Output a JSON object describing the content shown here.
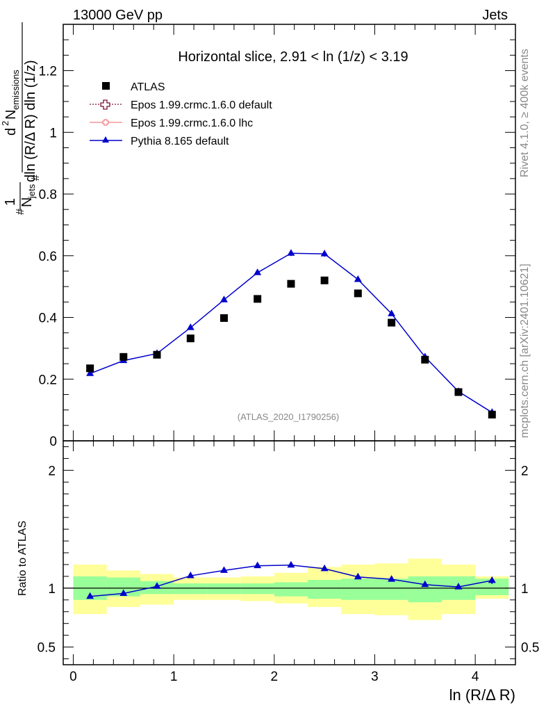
{
  "header": {
    "energy_label": "13000 GeV pp",
    "process_label": "Jets"
  },
  "side_labels": {
    "rivet": "Rivet 4.1.0, ≥ 400k events",
    "source": "mcplots.cern.ch [arXiv:2401.10621]"
  },
  "chart_data": [
    {
      "type": "scatter",
      "title": "Horizontal slice, 2.91 < ln (1/z) < 3.19",
      "watermark": "(ATLAS_2020_I1790256)",
      "ylabel_parts": {
        "one": "1",
        "njets": "N",
        "njets_sub": "jets",
        "hash_num": "#",
        "hash_den": "#",
        "d2": "d",
        "d2_sup": "2",
        "n_em": "N",
        "n_em_sub": "emissions",
        "denom": "dln (R/Δ R) dln (1/z)"
      },
      "ylim": [
        0,
        1.35
      ],
      "yticks": [
        0.2,
        0.4,
        0.6,
        0.8,
        1,
        1.2
      ],
      "ytick_labels": [
        "0.2",
        "0.4",
        "0.6",
        "0.8",
        "1",
        "1.2"
      ],
      "ytick_zero_label": "0",
      "legend": [
        "ATLAS",
        "Epos 1.99.crmc.1.6.0 default",
        "Epos 1.99.crmc.1.6.0 lhc",
        "Pythia 8.165 default"
      ],
      "legend_placement": "top-left",
      "series": [
        {
          "name": "ATLAS",
          "x": [
            0.167,
            0.5,
            0.833,
            1.167,
            1.5,
            1.833,
            2.167,
            2.5,
            2.833,
            3.167,
            3.5,
            3.833,
            4.167
          ],
          "y": [
            0.235,
            0.272,
            0.279,
            0.332,
            0.398,
            0.46,
            0.509,
            0.52,
            0.478,
            0.383,
            0.263,
            0.158,
            0.085
          ]
        },
        {
          "name": "Pythia 8.165 default",
          "x": [
            0.167,
            0.5,
            0.833,
            1.167,
            1.5,
            1.833,
            2.167,
            2.5,
            2.833,
            3.167,
            3.5,
            3.833,
            4.167
          ],
          "y": [
            0.218,
            0.26,
            0.283,
            0.367,
            0.457,
            0.545,
            0.608,
            0.606,
            0.523,
            0.412,
            0.272,
            0.16,
            0.092
          ],
          "yerr": [
            0.004,
            0.004,
            0.004,
            0.005,
            0.005,
            0.006,
            0.009,
            0.009,
            0.006,
            0.005,
            0.004,
            0.003,
            0.003
          ]
        }
      ]
    },
    {
      "type": "scatter",
      "ylabel": "Ratio to ATLAS",
      "xlabel": "ln (R/Δ R)",
      "xlim": [
        -0.1,
        4.4
      ],
      "xticks": [
        0,
        1,
        2,
        3,
        4
      ],
      "xtick_labels": [
        "0",
        "1",
        "2",
        "3",
        "4"
      ],
      "ylim": [
        0.35,
        2.25
      ],
      "yticks": [
        0.5,
        1,
        2
      ],
      "ytick_labels": [
        "0.5",
        "1",
        "2"
      ],
      "bins": [
        [
          0,
          0.333
        ],
        [
          0.333,
          0.667
        ],
        [
          0.667,
          1.0
        ],
        [
          1.0,
          1.333
        ],
        [
          1.333,
          1.667
        ],
        [
          1.667,
          2.0
        ],
        [
          2.0,
          2.333
        ],
        [
          2.333,
          2.667
        ],
        [
          2.667,
          3.0
        ],
        [
          3.0,
          3.333
        ],
        [
          3.333,
          3.667
        ],
        [
          3.667,
          4.0
        ],
        [
          4.0,
          4.333
        ]
      ],
      "band_stat_low": [
        0.9,
        0.93,
        0.95,
        0.95,
        0.95,
        0.95,
        0.93,
        0.91,
        0.9,
        0.9,
        0.88,
        0.9,
        0.94
      ],
      "band_stat_high": [
        1.1,
        1.09,
        1.06,
        1.04,
        1.04,
        1.04,
        1.05,
        1.07,
        1.08,
        1.08,
        1.1,
        1.1,
        1.08
      ],
      "band_total_low": [
        0.78,
        0.84,
        0.86,
        0.9,
        0.9,
        0.89,
        0.87,
        0.84,
        0.78,
        0.77,
        0.73,
        0.78,
        0.91
      ],
      "band_total_high": [
        1.2,
        1.15,
        1.12,
        1.09,
        1.09,
        1.1,
        1.13,
        1.18,
        1.2,
        1.21,
        1.25,
        1.2,
        1.1
      ],
      "series": [
        {
          "name": "Pythia 8.165 default",
          "x": [
            0.167,
            0.5,
            0.833,
            1.167,
            1.5,
            1.833,
            2.167,
            2.5,
            2.833,
            3.167,
            3.5,
            3.833,
            4.167
          ],
          "y": [
            0.93,
            0.955,
            1.015,
            1.105,
            1.15,
            1.19,
            1.195,
            1.165,
            1.095,
            1.075,
            1.03,
            1.01,
            1.065
          ],
          "yerr": [
            0.02,
            0.015,
            0.014,
            0.014,
            0.014,
            0.014,
            0.018,
            0.018,
            0.014,
            0.014,
            0.015,
            0.02,
            0.03
          ]
        }
      ],
      "reference_line": 1
    }
  ]
}
